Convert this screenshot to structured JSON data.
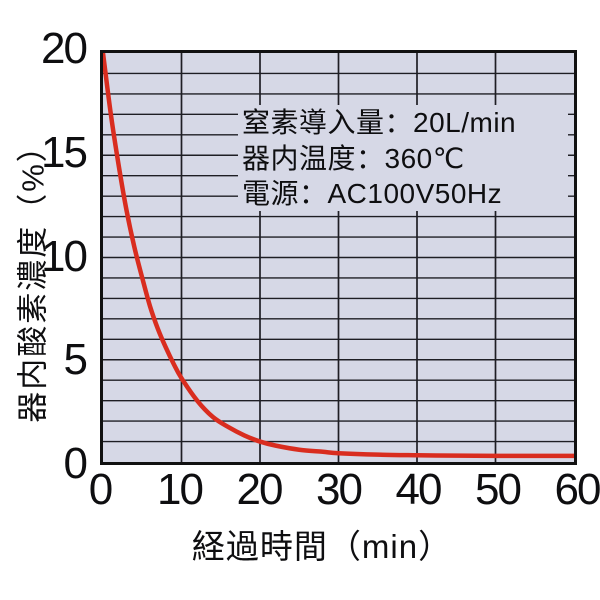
{
  "page_background": "#ffffff",
  "chart_data": {
    "type": "line",
    "title": "",
    "xlabel": "経過時間（min）",
    "ylabel": "器内酸素濃度（%）",
    "xlim": [
      0,
      60
    ],
    "ylim": [
      0,
      20
    ],
    "x_tick_values": [
      0,
      10,
      20,
      30,
      40,
      50,
      60
    ],
    "y_tick_values": [
      0,
      5,
      10,
      15,
      20
    ],
    "grid": {
      "visible": true,
      "horizontal_step_pct": 1,
      "vertical_step_min": 10
    },
    "colors": {
      "plot_background": "#d6d8e6",
      "grid_line": "#1e1e24",
      "axis_border": "#111111",
      "curve": "#d92d1f",
      "text": "#0e0e10"
    },
    "legend": "none",
    "series": [
      {
        "name": "器内酸素濃度",
        "color": "#d92d1f",
        "points": [
          [
            0,
            20.0
          ],
          [
            1,
            17.0
          ],
          [
            2,
            14.5
          ],
          [
            3,
            12.3
          ],
          [
            4,
            10.5
          ],
          [
            5,
            9.0
          ],
          [
            6,
            7.6
          ],
          [
            7,
            6.5
          ],
          [
            8,
            5.6
          ],
          [
            9,
            4.8
          ],
          [
            10,
            4.1
          ],
          [
            12,
            3.0
          ],
          [
            14,
            2.2
          ],
          [
            16,
            1.7
          ],
          [
            18,
            1.3
          ],
          [
            20,
            1.0
          ],
          [
            22,
            0.8
          ],
          [
            25,
            0.6
          ],
          [
            28,
            0.5
          ],
          [
            30,
            0.43
          ],
          [
            35,
            0.36
          ],
          [
            40,
            0.33
          ],
          [
            45,
            0.31
          ],
          [
            50,
            0.3
          ],
          [
            55,
            0.3
          ],
          [
            60,
            0.3
          ]
        ]
      }
    ],
    "annotation": {
      "lines": [
        "窒素導入量：20L/min",
        "器内温度：360℃",
        "電源：AC100V50Hz"
      ]
    }
  }
}
